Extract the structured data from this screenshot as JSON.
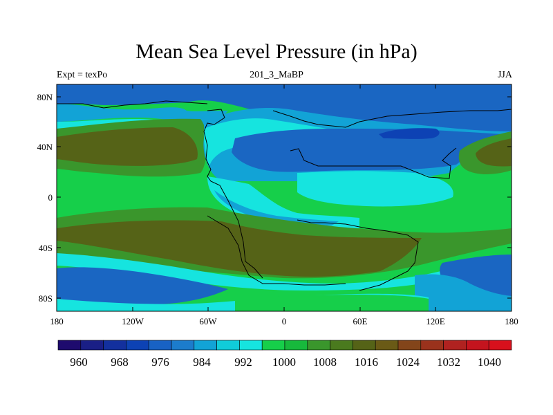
{
  "title": "Mean Sea Level Pressure (in hPa)",
  "subtitle": {
    "left": "Expt = texPo",
    "center": "201_3_MaBP",
    "right": "JJA"
  },
  "axes": {
    "x_ticks": [
      "180",
      "120W",
      "60W",
      "0",
      "60E",
      "120E",
      "180"
    ],
    "y_ticks": [
      "80N",
      "40N",
      "0",
      "40S",
      "80S"
    ]
  },
  "colorbar": {
    "labels": [
      "960",
      "968",
      "976",
      "984",
      "992",
      "1000",
      "1008",
      "1016",
      "1024",
      "1032",
      "1040"
    ],
    "colors": [
      "#1e0b6e",
      "#1a1f86",
      "#13309e",
      "#0d42b4",
      "#1862c4",
      "#1c7ccc",
      "#12a3d6",
      "#10ccd9",
      "#16e4df",
      "#16cf4a",
      "#17b93c",
      "#3a962c",
      "#4a7a1e",
      "#556317",
      "#6a5a16",
      "#83451a",
      "#9a321c",
      "#b02220",
      "#c4141e",
      "#d8101c"
    ]
  },
  "map_colors": {
    "deep_low": "#0d42b4",
    "low": "#1a66c2",
    "mid_low": "#12a3d6",
    "near": "#16e4df",
    "normal": "#16cf4a",
    "high": "#3a962c",
    "very_high": "#556317"
  }
}
